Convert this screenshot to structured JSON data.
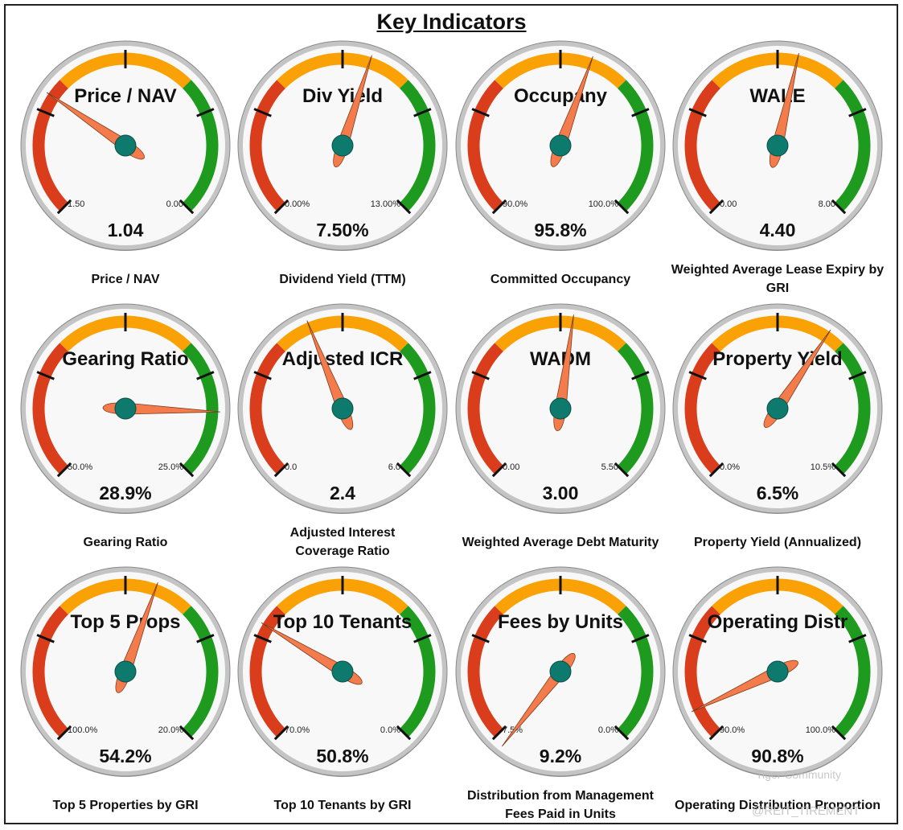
{
  "title": "Key Indicators",
  "colors": {
    "red": "#d93d1c",
    "orange": "#f9a105",
    "green": "#1e9a1e",
    "needle": "#f47c4c",
    "hub": "#0e7a6e",
    "face": "#f8f8f8",
    "bezel": "#c4c4c4"
  },
  "gauges": [
    {
      "title": "Price / NAV",
      "min": "1.50",
      "max": "0.00",
      "value": "1.04",
      "caption": [
        "Price / NAV"
      ],
      "angle": -56
    },
    {
      "title": "Div Yield",
      "min": "0.00%",
      "max": "13.00%",
      "value": "7.50%",
      "caption": [
        "Dividend Yield (TTM)"
      ],
      "angle": 18
    },
    {
      "title": "Occupany",
      "min": "90.0%",
      "max": "100.0%",
      "value": "95.8%",
      "caption": [
        "Committed Occupancy"
      ],
      "angle": 20
    },
    {
      "title": "WALE",
      "min": "0.00",
      "max": "8.00",
      "value": "4.40",
      "caption": [
        "Weighted Average Lease Expiry by",
        "GRI"
      ],
      "angle": 13
    },
    {
      "title": "Gearing Ratio",
      "min": "50.0%",
      "max": "25.0%",
      "value": "28.9%",
      "caption": [
        "Gearing Ratio"
      ],
      "angle": 92
    },
    {
      "title": "Adjusted ICR",
      "min": "0.0",
      "max": "6.0",
      "value": "2.4",
      "caption": [
        "Adjusted Interest",
        "Coverage Ratio"
      ],
      "angle": -22
    },
    {
      "title": "WADM",
      "min": "0.00",
      "max": "5.50",
      "value": "3.00",
      "caption": [
        "Weighted Average Debt Maturity"
      ],
      "angle": 8
    },
    {
      "title": "Property Yield",
      "min": "0.0%",
      "max": "10.5%",
      "value": "6.5%",
      "caption": [
        "Property Yield (Annualized)"
      ],
      "angle": 34
    },
    {
      "title": "Top 5 Props",
      "min": "100.0%",
      "max": "20.0%",
      "value": "54.2%",
      "caption": [
        "Top 5 Properties by GRI"
      ],
      "angle": 20
    },
    {
      "title": "Top 10 Tenants",
      "min": "70.0%",
      "max": "0.0%",
      "value": "50.8%",
      "caption": [
        "Top 10 Tenants by GRI"
      ],
      "angle": -59
    },
    {
      "title": "Fees by Units",
      "min": "7.5%",
      "max": "0.0%",
      "value": "9.2%",
      "caption": [
        "Distribution from Management",
        "Fees Paid in Units"
      ],
      "angle": -142
    },
    {
      "title": "Operating Distr",
      "min": "90.0%",
      "max": "100.0%",
      "value": "90.8%",
      "caption": [
        "Operating Distribution Proportion"
      ],
      "angle": -115
    }
  ],
  "watermark": {
    "brand": "Tiger Community",
    "handle": "@REIT_TIREMENT"
  }
}
